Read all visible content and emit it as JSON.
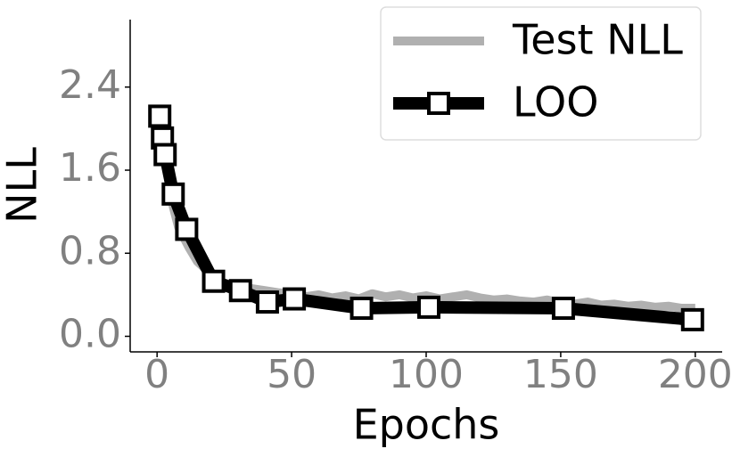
{
  "chart_data": {
    "type": "line",
    "xlabel": "Epochs",
    "ylabel": "NLL",
    "xlim": [
      -10,
      210
    ],
    "xticks": [
      0,
      50,
      100,
      150,
      200
    ],
    "ylim": [
      -0.15,
      3.05
    ],
    "yticks": [
      {
        "value": 0,
        "label": "0.0"
      },
      0.8,
      1.6,
      2.4
    ],
    "legend": "upper right",
    "series": [
      {
        "name": "Test NLL",
        "color": "#b0b0b0",
        "marker": "none",
        "x": [
          0,
          2,
          4,
          6,
          8,
          10,
          12,
          15,
          18,
          20,
          25,
          30,
          35,
          40,
          45,
          50,
          55,
          60,
          65,
          70,
          75,
          80,
          85,
          90,
          95,
          100,
          105,
          110,
          115,
          120,
          125,
          130,
          135,
          140,
          145,
          150,
          155,
          160,
          165,
          170,
          175,
          180,
          185,
          190,
          195,
          200
        ],
        "values": [
          2.1,
          1.85,
          1.6,
          1.25,
          1.05,
          0.95,
          0.85,
          0.72,
          0.65,
          0.6,
          0.5,
          0.47,
          0.46,
          0.44,
          0.42,
          0.41,
          0.38,
          0.4,
          0.37,
          0.39,
          0.36,
          0.41,
          0.38,
          0.4,
          0.37,
          0.39,
          0.36,
          0.38,
          0.4,
          0.37,
          0.35,
          0.36,
          0.34,
          0.33,
          0.35,
          0.32,
          0.31,
          0.33,
          0.3,
          0.31,
          0.29,
          0.3,
          0.28,
          0.29,
          0.27,
          0.27
        ]
      },
      {
        "name": "LOO",
        "color": "#000000",
        "marker": "square",
        "x": [
          1,
          2,
          3,
          6,
          11,
          21,
          31,
          41,
          51,
          76,
          101,
          151,
          199
        ],
        "values": [
          2.12,
          1.91,
          1.75,
          1.37,
          1.03,
          0.53,
          0.44,
          0.33,
          0.36,
          0.27,
          0.28,
          0.27,
          0.16
        ]
      }
    ]
  }
}
